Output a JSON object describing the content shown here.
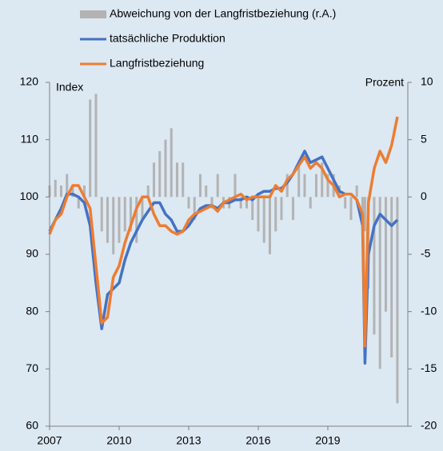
{
  "chart_data": {
    "type": "bar_line",
    "axis_labels": {
      "y": "Index",
      "y2": "Prozent"
    },
    "x": [
      2007,
      2007.25,
      2007.5,
      2007.75,
      2008,
      2008.25,
      2008.5,
      2008.75,
      2009,
      2009.25,
      2009.5,
      2009.75,
      2010,
      2010.25,
      2010.5,
      2010.75,
      2011,
      2011.25,
      2011.5,
      2011.75,
      2012,
      2012.25,
      2012.5,
      2012.75,
      2013,
      2013.25,
      2013.5,
      2013.75,
      2014,
      2014.25,
      2014.5,
      2014.75,
      2015,
      2015.25,
      2015.5,
      2015.75,
      2016,
      2016.25,
      2016.5,
      2016.75,
      2017,
      2017.25,
      2017.5,
      2017.75,
      2018,
      2018.25,
      2018.5,
      2018.75,
      2019,
      2019.25,
      2019.5,
      2019.75,
      2020,
      2020.25,
      2020.5,
      2020.6,
      2020.75,
      2021,
      2021.25,
      2021.5,
      2021.75,
      2022
    ],
    "series": [
      {
        "name": "Abweichung von der Langfristbeziehung (r.A.)",
        "type": "bar",
        "axis": "y2",
        "color": "#b3b3b3",
        "values": [
          1,
          1.5,
          1,
          2,
          1,
          -1,
          1,
          8.5,
          9,
          -3,
          -4,
          -5,
          -4,
          -3,
          -3,
          -4,
          -2,
          1,
          3,
          4,
          5,
          6,
          3,
          3,
          -1,
          -2,
          2,
          1,
          -1,
          2,
          -1,
          -1,
          2,
          -1,
          -1,
          -2,
          -3,
          -4,
          -5,
          -3,
          -2,
          2,
          -2,
          3,
          2,
          -1,
          2,
          3,
          2,
          2,
          1,
          -1,
          -2,
          1,
          -3,
          -3,
          -8,
          -12,
          -15,
          -10,
          -14,
          -18
        ]
      },
      {
        "name": "tatsächliche Produktion",
        "type": "line",
        "color": "#4472c4",
        "values": [
          94,
          96,
          98,
          100.5,
          100.5,
          100,
          99,
          95,
          85,
          77,
          83,
          84,
          85,
          89,
          92,
          94,
          96,
          97.5,
          99,
          99,
          97,
          96,
          94,
          94,
          95,
          96.5,
          98,
          98.5,
          98.5,
          98,
          99,
          99,
          99.5,
          99.5,
          100,
          99.5,
          100.5,
          101,
          101,
          101.5,
          101.5,
          102.5,
          104,
          106,
          108,
          106,
          106.5,
          107,
          105,
          103,
          101,
          100.5,
          100.5,
          99.5,
          95,
          71,
          90,
          95,
          97,
          96,
          95,
          96
        ]
      },
      {
        "name": "Langfristbeziehung",
        "type": "line",
        "color": "#ed7d31",
        "values": [
          93.5,
          96,
          97,
          100,
          102,
          102,
          100,
          98,
          88,
          78,
          79,
          86,
          88,
          92,
          95,
          98,
          100,
          100,
          97,
          95,
          95,
          94,
          93.5,
          94,
          96,
          97,
          97.5,
          98,
          98.5,
          97.5,
          99,
          99.5,
          100,
          100.5,
          99.5,
          100,
          100,
          100,
          100,
          102,
          101,
          103,
          104,
          105.5,
          107,
          105,
          106,
          105,
          103,
          102,
          100,
          100.5,
          100.5,
          99.5,
          97,
          74,
          99,
          105,
          108,
          106,
          109,
          114
        ]
      }
    ],
    "xlim": [
      2007,
      2022.45
    ],
    "xticks": [
      2007,
      2010,
      2013,
      2016,
      2019
    ],
    "ylim": [
      60,
      120
    ],
    "yticks": [
      60,
      70,
      80,
      90,
      100,
      110,
      120
    ],
    "y2lim": [
      -20,
      10
    ],
    "y2ticks": [
      -20,
      -15,
      -10,
      -5,
      0,
      5,
      10
    ]
  }
}
